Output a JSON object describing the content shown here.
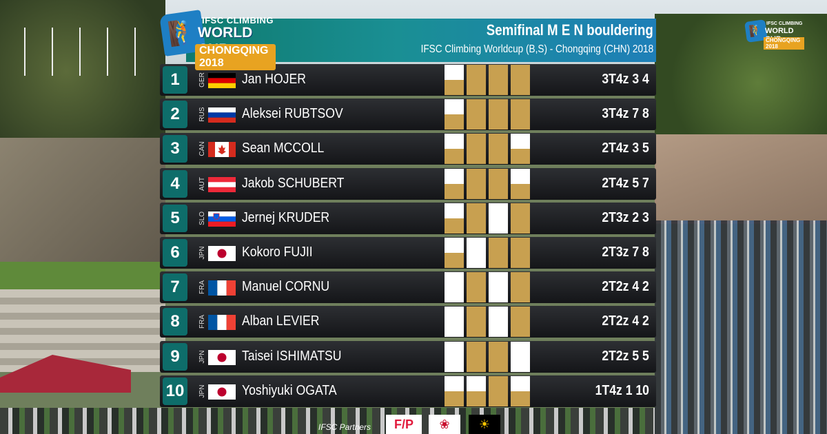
{
  "event": {
    "logo_line1": "IFSC CLIMBING",
    "logo_line2": "WORLD CUP",
    "logo_line3": "CHONGQING 2018",
    "title": "Semifinal M E N bouldering",
    "subtitle": "IFSC Climbing Worldcup (B,S) - Chongqing (CHN) 2018"
  },
  "colors": {
    "top": "#c8a050",
    "zone": "#ffffff",
    "empty": "#2a2a2a",
    "rank_bg": "#0e6d6a"
  },
  "results": [
    {
      "rank": "1",
      "country": "GER",
      "name": "Jan HOJER",
      "score": "3T4z 3 4",
      "boulders": [
        {
          "zone": true,
          "top": false
        },
        {
          "zone": true,
          "top": true
        },
        {
          "zone": true,
          "top": true
        },
        {
          "zone": true,
          "top": true
        }
      ]
    },
    {
      "rank": "2",
      "country": "RUS",
      "name": "Aleksei RUBTSOV",
      "score": "3T4z 7 8",
      "boulders": [
        {
          "zone": true,
          "top": false
        },
        {
          "zone": true,
          "top": true
        },
        {
          "zone": true,
          "top": true
        },
        {
          "zone": true,
          "top": true
        }
      ]
    },
    {
      "rank": "3",
      "country": "CAN",
      "name": "Sean MCCOLL",
      "score": "2T4z 3 5",
      "boulders": [
        {
          "zone": true,
          "top": false
        },
        {
          "zone": true,
          "top": true
        },
        {
          "zone": true,
          "top": true
        },
        {
          "zone": true,
          "top": false
        }
      ]
    },
    {
      "rank": "4",
      "country": "AUT",
      "name": "Jakob SCHUBERT",
      "score": "2T4z 5 7",
      "boulders": [
        {
          "zone": true,
          "top": false
        },
        {
          "zone": true,
          "top": true
        },
        {
          "zone": true,
          "top": true
        },
        {
          "zone": true,
          "top": false
        }
      ]
    },
    {
      "rank": "5",
      "country": "SLO",
      "name": "Jernej KRUDER",
      "score": "2T3z 2 3",
      "boulders": [
        {
          "zone": true,
          "top": false
        },
        {
          "zone": true,
          "top": true
        },
        {
          "zone": false,
          "top": false
        },
        {
          "zone": true,
          "top": true
        }
      ]
    },
    {
      "rank": "6",
      "country": "JPN",
      "name": "Kokoro FUJII",
      "score": "2T3z 7 8",
      "boulders": [
        {
          "zone": true,
          "top": false
        },
        {
          "zone": false,
          "top": false
        },
        {
          "zone": true,
          "top": true
        },
        {
          "zone": true,
          "top": true
        }
      ]
    },
    {
      "rank": "7",
      "country": "FRA",
      "name": "Manuel CORNU",
      "score": "2T2z 4 2",
      "boulders": [
        {
          "zone": false,
          "top": false
        },
        {
          "zone": true,
          "top": true
        },
        {
          "zone": false,
          "top": false
        },
        {
          "zone": true,
          "top": true
        }
      ]
    },
    {
      "rank": "8",
      "country": "FRA",
      "name": "Alban LEVIER",
      "score": "2T2z 4 2",
      "boulders": [
        {
          "zone": false,
          "top": false
        },
        {
          "zone": true,
          "top": true
        },
        {
          "zone": false,
          "top": false
        },
        {
          "zone": true,
          "top": true
        }
      ]
    },
    {
      "rank": "9",
      "country": "JPN",
      "name": "Taisei ISHIMATSU",
      "score": "2T2z 5 5",
      "boulders": [
        {
          "zone": false,
          "top": false
        },
        {
          "zone": true,
          "top": true
        },
        {
          "zone": true,
          "top": true
        },
        {
          "zone": false,
          "top": false
        }
      ]
    },
    {
      "rank": "10",
      "country": "JPN",
      "name": "Yoshiyuki OGATA",
      "score": "1T4z 1 10",
      "boulders": [
        {
          "zone": true,
          "top": false
        },
        {
          "zone": true,
          "top": false
        },
        {
          "zone": true,
          "top": true
        },
        {
          "zone": true,
          "top": false
        }
      ]
    }
  ],
  "partners": {
    "label": "IFSC Partners"
  }
}
